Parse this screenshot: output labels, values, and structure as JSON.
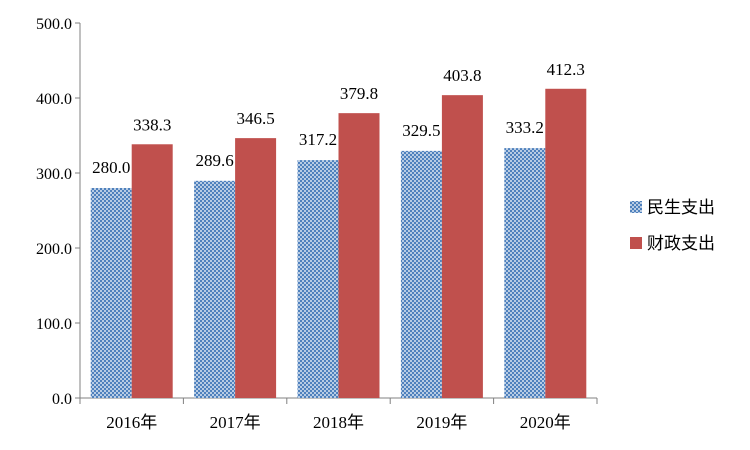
{
  "chart_data": {
    "type": "bar",
    "categories": [
      "2016年",
      "2017年",
      "2018年",
      "2019年",
      "2020年"
    ],
    "series": [
      {
        "name": "民生支出",
        "values": [
          280.0,
          289.6,
          317.2,
          329.5,
          333.2
        ],
        "color": "#4F81BD",
        "pattern": "dotted"
      },
      {
        "name": "财政支出",
        "values": [
          338.3,
          346.5,
          379.8,
          403.8,
          412.3
        ],
        "color": "#C0504D",
        "pattern": "solid"
      }
    ],
    "data_labels": [
      [
        "280.0",
        "289.6",
        "317.2",
        "329.5",
        "333.2"
      ],
      [
        "338.3",
        "346.5",
        "379.8",
        "403.8",
        "412.3"
      ]
    ],
    "ylim": [
      0,
      500
    ],
    "yticks": [
      "0.0",
      "100.0",
      "200.0",
      "300.0",
      "400.0",
      "500.0"
    ],
    "grid": false,
    "legend_position": "right",
    "title": "",
    "xlabel": "",
    "ylabel": ""
  }
}
